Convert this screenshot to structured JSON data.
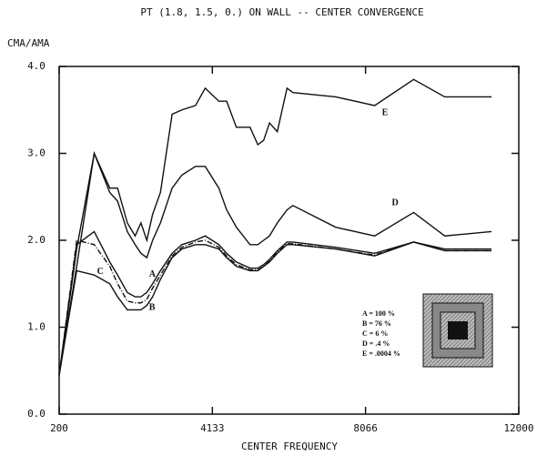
{
  "chart_data": {
    "type": "line",
    "title": "PT (1.8, 1.5, 0.) ON WALL  -- CENTER CONVERGENCE",
    "y_label": "CMA/AMA",
    "x_label": "CENTER FREQUENCY",
    "x": [
      200,
      650,
      1100,
      1500,
      1700,
      1950,
      2150,
      2300,
      2450,
      2600,
      2800,
      3100,
      3350,
      3700,
      3950,
      4300,
      4500,
      4750,
      5100,
      5300,
      5450,
      5600,
      5800,
      6050,
      6200,
      7300,
      8300,
      9300,
      10100,
      11300
    ],
    "series": [
      {
        "name": "E",
        "color": "#111111",
        "values": [
          0.45,
          1.7,
          3.0,
          2.6,
          2.6,
          2.2,
          2.05,
          2.2,
          2.0,
          2.3,
          2.55,
          3.45,
          3.5,
          3.55,
          3.75,
          3.6,
          3.6,
          3.3,
          3.3,
          3.1,
          3.15,
          3.35,
          3.25,
          3.75,
          3.7,
          3.65,
          3.55,
          3.85,
          3.65,
          3.65
        ]
      },
      {
        "name": "D",
        "color": "#111111",
        "values": [
          0.45,
          1.9,
          3.0,
          2.55,
          2.45,
          2.1,
          1.95,
          1.85,
          1.8,
          2.0,
          2.2,
          2.6,
          2.75,
          2.85,
          2.85,
          2.6,
          2.35,
          2.15,
          1.95,
          1.95,
          2.0,
          2.05,
          2.2,
          2.35,
          2.4,
          2.15,
          2.05,
          2.32,
          2.05,
          2.1
        ]
      },
      {
        "name": "C",
        "color": "#111111",
        "values": [
          0.45,
          2.0,
          1.95,
          1.7,
          1.5,
          1.3,
          1.28,
          1.28,
          1.32,
          1.45,
          1.6,
          1.82,
          1.92,
          1.98,
          2.0,
          1.92,
          1.82,
          1.72,
          1.66,
          1.66,
          1.7,
          1.76,
          1.86,
          1.96,
          1.96,
          1.9,
          1.83,
          1.98,
          1.88,
          1.88
        ]
      },
      {
        "name": "B",
        "color": "#111111",
        "values": [
          0.45,
          1.65,
          1.6,
          1.5,
          1.35,
          1.2,
          1.2,
          1.2,
          1.25,
          1.35,
          1.55,
          1.8,
          1.9,
          1.95,
          1.95,
          1.9,
          1.8,
          1.7,
          1.65,
          1.65,
          1.7,
          1.75,
          1.85,
          1.95,
          1.95,
          1.9,
          1.82,
          1.98,
          1.88,
          1.88
        ]
      },
      {
        "name": "A",
        "color": "#111111",
        "values": [
          0.45,
          1.95,
          2.1,
          1.75,
          1.6,
          1.4,
          1.35,
          1.35,
          1.4,
          1.5,
          1.65,
          1.85,
          1.95,
          2.0,
          2.05,
          1.95,
          1.85,
          1.75,
          1.68,
          1.68,
          1.72,
          1.78,
          1.88,
          1.98,
          1.98,
          1.92,
          1.85,
          1.98,
          1.9,
          1.9
        ]
      }
    ],
    "legend_text": [
      "A = 100 %",
      "B = 76 %",
      "C = 6 %",
      "D = .4 %",
      "E = .0004 %"
    ],
    "xlim": [
      200,
      12000
    ],
    "xticks": [
      200,
      4133,
      8066,
      12000
    ],
    "ylim": [
      0,
      4
    ],
    "yticks": [
      {
        "value": 0,
        "label": "0.0"
      },
      {
        "value": 1,
        "label": "1.0"
      },
      {
        "value": 2,
        "label": "2.0"
      },
      {
        "value": 3,
        "label": "3.0"
      },
      {
        "value": 4,
        "label": "4.0"
      }
    ]
  }
}
